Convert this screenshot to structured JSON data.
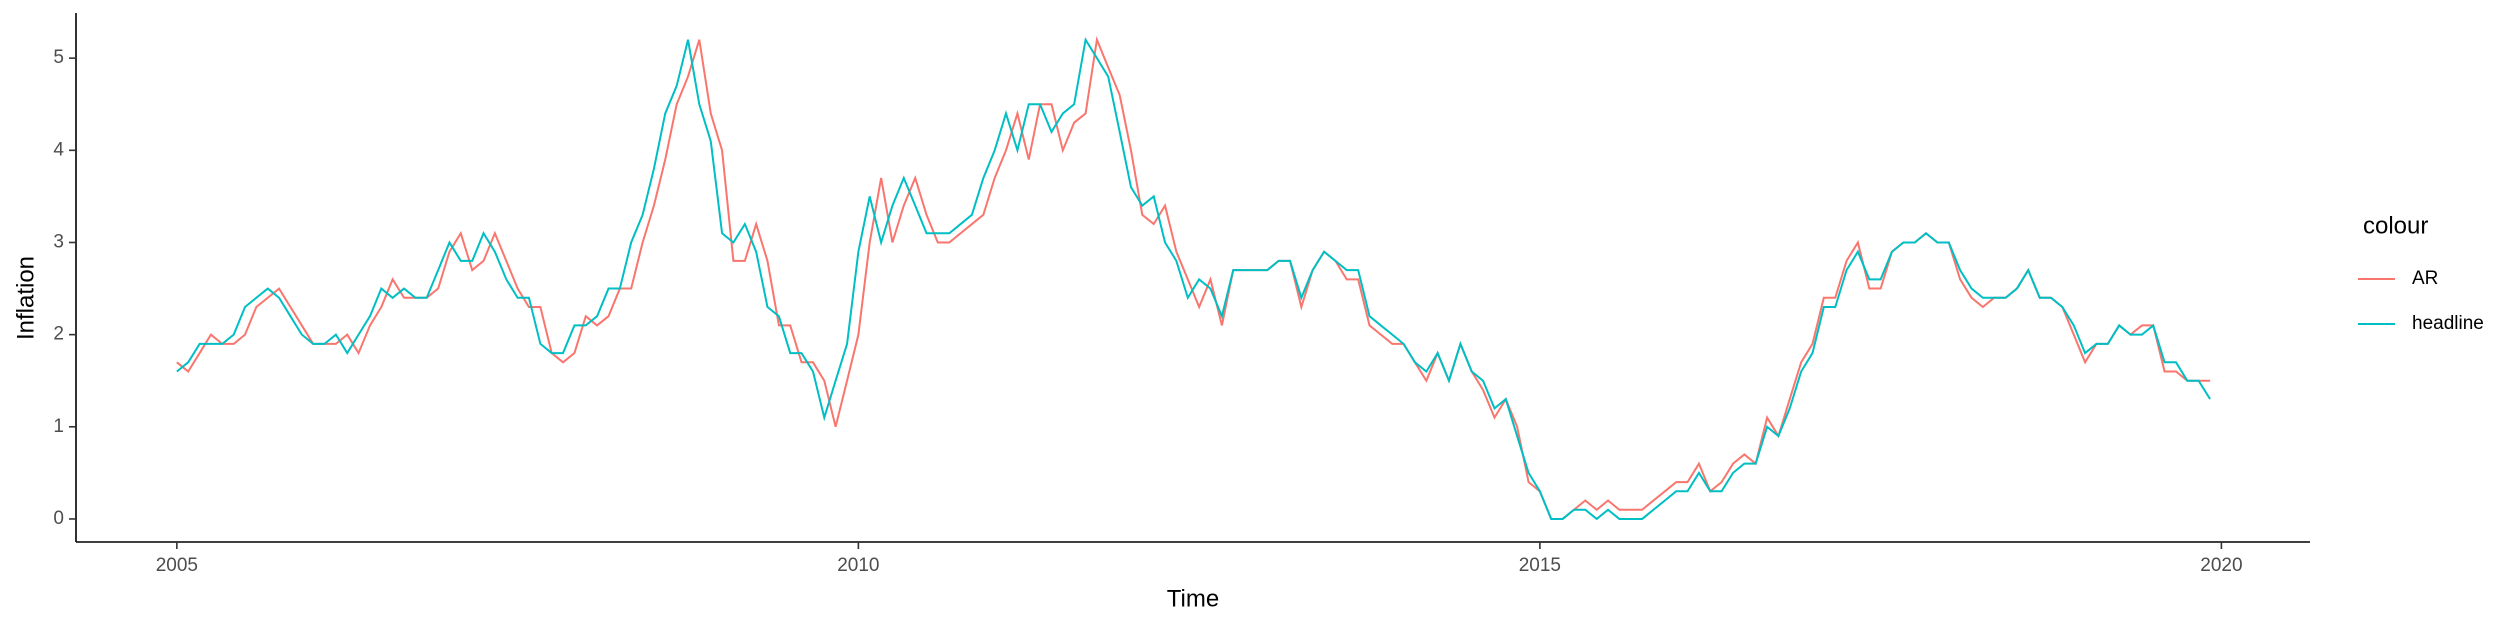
{
  "chart_data": {
    "type": "line",
    "x_label": "Time",
    "y_label": "Inflation",
    "legend_title": "colour",
    "x": [
      2005,
      2005.083,
      2005.167,
      2005.25,
      2005.333,
      2005.417,
      2005.5,
      2005.583,
      2005.667,
      2005.75,
      2005.833,
      2005.917,
      2006,
      2006.083,
      2006.167,
      2006.25,
      2006.333,
      2006.417,
      2006.5,
      2006.583,
      2006.667,
      2006.75,
      2006.833,
      2006.917,
      2007,
      2007.083,
      2007.167,
      2007.25,
      2007.333,
      2007.417,
      2007.5,
      2007.583,
      2007.667,
      2007.75,
      2007.833,
      2007.917,
      2008,
      2008.083,
      2008.167,
      2008.25,
      2008.333,
      2008.417,
      2008.5,
      2008.583,
      2008.667,
      2008.75,
      2008.833,
      2008.917,
      2009,
      2009.083,
      2009.167,
      2009.25,
      2009.333,
      2009.417,
      2009.5,
      2009.583,
      2009.667,
      2009.75,
      2009.833,
      2009.917,
      2010,
      2010.083,
      2010.167,
      2010.25,
      2010.333,
      2010.417,
      2010.5,
      2010.583,
      2010.667,
      2010.75,
      2010.833,
      2010.917,
      2011,
      2011.083,
      2011.167,
      2011.25,
      2011.333,
      2011.417,
      2011.5,
      2011.583,
      2011.667,
      2011.75,
      2011.833,
      2011.917,
      2012,
      2012.083,
      2012.167,
      2012.25,
      2012.333,
      2012.417,
      2012.5,
      2012.583,
      2012.667,
      2012.75,
      2012.833,
      2012.917,
      2013,
      2013.083,
      2013.167,
      2013.25,
      2013.333,
      2013.417,
      2013.5,
      2013.583,
      2013.667,
      2013.75,
      2013.833,
      2013.917,
      2014,
      2014.083,
      2014.167,
      2014.25,
      2014.333,
      2014.417,
      2014.5,
      2014.583,
      2014.667,
      2014.75,
      2014.833,
      2014.917,
      2015,
      2015.083,
      2015.167,
      2015.25,
      2015.333,
      2015.417,
      2015.5,
      2015.583,
      2015.667,
      2015.75,
      2015.833,
      2015.917,
      2016,
      2016.083,
      2016.167,
      2016.25,
      2016.333,
      2016.417,
      2016.5,
      2016.583,
      2016.667,
      2016.75,
      2016.833,
      2016.917,
      2017,
      2017.083,
      2017.167,
      2017.25,
      2017.333,
      2017.417,
      2017.5,
      2017.583,
      2017.667,
      2017.75,
      2017.833,
      2017.917,
      2018,
      2018.083,
      2018.167,
      2018.25,
      2018.333,
      2018.417,
      2018.5,
      2018.583,
      2018.667,
      2018.75,
      2018.833,
      2018.917,
      2019,
      2019.083,
      2019.167,
      2019.25,
      2019.333,
      2019.417,
      2019.5,
      2019.583,
      2019.667,
      2019.75,
      2019.833,
      2019.917
    ],
    "series": [
      {
        "name": "AR",
        "color": "#F8766D",
        "values": [
          1.7,
          1.6,
          1.8,
          2.0,
          1.9,
          1.9,
          2.0,
          2.3,
          2.4,
          2.5,
          2.3,
          2.1,
          1.9,
          1.9,
          1.9,
          2.0,
          1.8,
          2.1,
          2.3,
          2.6,
          2.4,
          2.4,
          2.4,
          2.5,
          2.9,
          3.1,
          2.7,
          2.8,
          3.1,
          2.8,
          2.5,
          2.3,
          2.3,
          1.8,
          1.7,
          1.8,
          2.2,
          2.1,
          2.2,
          2.5,
          2.5,
          3.0,
          3.4,
          3.9,
          4.5,
          4.8,
          5.2,
          4.4,
          4.0,
          2.8,
          2.8,
          3.2,
          2.8,
          2.1,
          2.1,
          1.7,
          1.7,
          1.5,
          1.0,
          1.5,
          2.0,
          3.0,
          3.7,
          3.0,
          3.4,
          3.7,
          3.3,
          3.0,
          3.0,
          3.1,
          3.2,
          3.3,
          3.7,
          4.0,
          4.4,
          3.9,
          4.5,
          4.5,
          4.0,
          4.3,
          4.4,
          5.2,
          4.9,
          4.6,
          4.0,
          3.3,
          3.2,
          3.4,
          2.9,
          2.6,
          2.3,
          2.6,
          2.1,
          2.7,
          2.7,
          2.7,
          2.7,
          2.8,
          2.8,
          2.3,
          2.7,
          2.9,
          2.8,
          2.6,
          2.6,
          2.1,
          2.0,
          1.9,
          1.9,
          1.7,
          1.5,
          1.8,
          1.5,
          1.9,
          1.6,
          1.4,
          1.1,
          1.3,
          1.0,
          0.4,
          0.3,
          0.0,
          0.0,
          0.1,
          0.2,
          0.1,
          0.2,
          0.1,
          0.1,
          0.1,
          0.2,
          0.3,
          0.4,
          0.4,
          0.6,
          0.3,
          0.4,
          0.6,
          0.7,
          0.6,
          1.1,
          0.9,
          1.3,
          1.7,
          1.9,
          2.4,
          2.4,
          2.8,
          3.0,
          2.5,
          2.5,
          2.9,
          3.0,
          3.0,
          3.1,
          3.0,
          3.0,
          2.6,
          2.4,
          2.3,
          2.4,
          2.4,
          2.5,
          2.7,
          2.4,
          2.4,
          2.3,
          2.0,
          1.7,
          1.9,
          1.9,
          2.1,
          2.0,
          2.1,
          2.1,
          1.6,
          1.6,
          1.5,
          1.5,
          1.5
        ]
      },
      {
        "name": "headline",
        "color": "#00BFC4",
        "values": [
          1.6,
          1.7,
          1.9,
          1.9,
          1.9,
          2.0,
          2.3,
          2.4,
          2.5,
          2.4,
          2.2,
          2.0,
          1.9,
          1.9,
          2.0,
          1.8,
          2.0,
          2.2,
          2.5,
          2.4,
          2.5,
          2.4,
          2.4,
          2.7,
          3.0,
          2.8,
          2.8,
          3.1,
          2.9,
          2.6,
          2.4,
          2.4,
          1.9,
          1.8,
          1.8,
          2.1,
          2.1,
          2.2,
          2.5,
          2.5,
          3.0,
          3.3,
          3.8,
          4.4,
          4.7,
          5.2,
          4.5,
          4.1,
          3.1,
          3.0,
          3.2,
          2.9,
          2.3,
          2.2,
          1.8,
          1.8,
          1.6,
          1.1,
          1.5,
          1.9,
          2.9,
          3.5,
          3.0,
          3.4,
          3.7,
          3.4,
          3.1,
          3.1,
          3.1,
          3.2,
          3.3,
          3.7,
          4.0,
          4.4,
          4.0,
          4.5,
          4.5,
          4.2,
          4.4,
          4.5,
          5.2,
          5.0,
          4.8,
          4.2,
          3.6,
          3.4,
          3.5,
          3.0,
          2.8,
          2.4,
          2.6,
          2.5,
          2.2,
          2.7,
          2.7,
          2.7,
          2.7,
          2.8,
          2.8,
          2.4,
          2.7,
          2.9,
          2.8,
          2.7,
          2.7,
          2.2,
          2.1,
          2.0,
          1.9,
          1.7,
          1.6,
          1.8,
          1.5,
          1.9,
          1.6,
          1.5,
          1.2,
          1.3,
          0.9,
          0.5,
          0.3,
          0.0,
          0.0,
          0.1,
          0.1,
          0.0,
          0.1,
          0.0,
          0.0,
          0.0,
          0.1,
          0.2,
          0.3,
          0.3,
          0.5,
          0.3,
          0.3,
          0.5,
          0.6,
          0.6,
          1.0,
          0.9,
          1.2,
          1.6,
          1.8,
          2.3,
          2.3,
          2.7,
          2.9,
          2.6,
          2.6,
          2.9,
          3.0,
          3.0,
          3.1,
          3.0,
          3.0,
          2.7,
          2.5,
          2.4,
          2.4,
          2.4,
          2.5,
          2.7,
          2.4,
          2.4,
          2.3,
          2.1,
          1.8,
          1.9,
          1.9,
          2.1,
          2.0,
          2.0,
          2.1,
          1.7,
          1.7,
          1.5,
          1.5,
          1.3
        ]
      }
    ],
    "xlim": [
      2004.26,
      2020.65
    ],
    "xticks": [
      2005,
      2010,
      2015,
      2020
    ],
    "ylim": [
      -0.25,
      5.49
    ],
    "yticks": [
      0,
      1,
      2,
      3,
      4,
      5
    ],
    "grid": false,
    "legend": "right"
  }
}
